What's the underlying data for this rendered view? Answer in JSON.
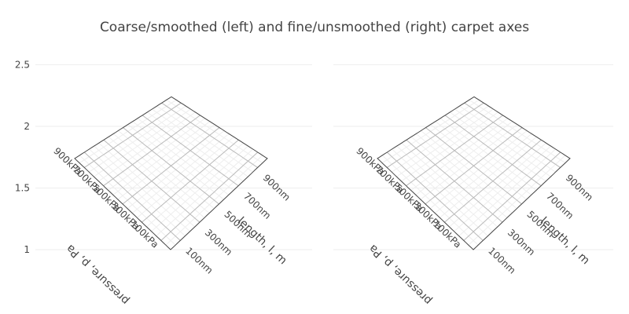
{
  "title": "Coarse/smoothed (left) and fine/unsmoothed (right) carpet axes",
  "colors": {
    "text": "#444444",
    "major_grid": "#bbbbbb",
    "minor_grid": "#eeeeee",
    "boundary": "#444444",
    "plot_grid": "#eeeeee"
  },
  "chart_data": [
    {
      "type": "carpet",
      "name": "left",
      "smoothing": "coarse/smoothed",
      "y_axis": {
        "ticks": [
          1,
          1.5,
          2,
          2.5
        ],
        "range": [
          0.8,
          2.5
        ]
      },
      "a_axis": {
        "title": "pressure, p, Pa",
        "tick_values": [
          100000,
          300000,
          500000,
          700000,
          900000
        ],
        "tick_labels": [
          "100kPa",
          "300kPa",
          "500kPa",
          "700kPa",
          "900kPa"
        ],
        "range": [
          0,
          1000000
        ]
      },
      "b_axis": {
        "title": "length, l, m",
        "tick_values": [
          1e-07,
          3e-07,
          5e-07,
          7e-07,
          9e-07
        ],
        "tick_labels": [
          "100nm",
          "300nm",
          "500nm",
          "700nm",
          "900nm"
        ],
        "range": [
          0,
          1e-06
        ]
      },
      "corner_y": {
        "origin": 1.0,
        "a_max": 1.74,
        "b_max": 1.74,
        "far": 2.24
      },
      "grid": true
    },
    {
      "type": "carpet",
      "name": "right",
      "smoothing": "fine/unsmoothed",
      "y_axis": {
        "ticks": [
          1,
          1.5,
          2,
          2.5
        ],
        "range": [
          0.8,
          2.5
        ]
      },
      "a_axis": {
        "title": "pressure, p, Pa",
        "tick_values": [
          100000,
          300000,
          500000,
          700000,
          900000
        ],
        "tick_labels": [
          "100kPa",
          "300kPa",
          "500kPa",
          "700kPa",
          "900kPa"
        ],
        "range": [
          0,
          1000000
        ]
      },
      "b_axis": {
        "title": "length, l, m",
        "tick_values": [
          1e-07,
          3e-07,
          5e-07,
          7e-07,
          9e-07
        ],
        "tick_labels": [
          "100nm",
          "300nm",
          "500nm",
          "700nm",
          "900nm"
        ],
        "range": [
          0,
          1e-06
        ]
      },
      "corner_y": {
        "origin": 1.0,
        "a_max": 1.74,
        "b_max": 1.74,
        "far": 2.24
      },
      "grid": true
    }
  ]
}
